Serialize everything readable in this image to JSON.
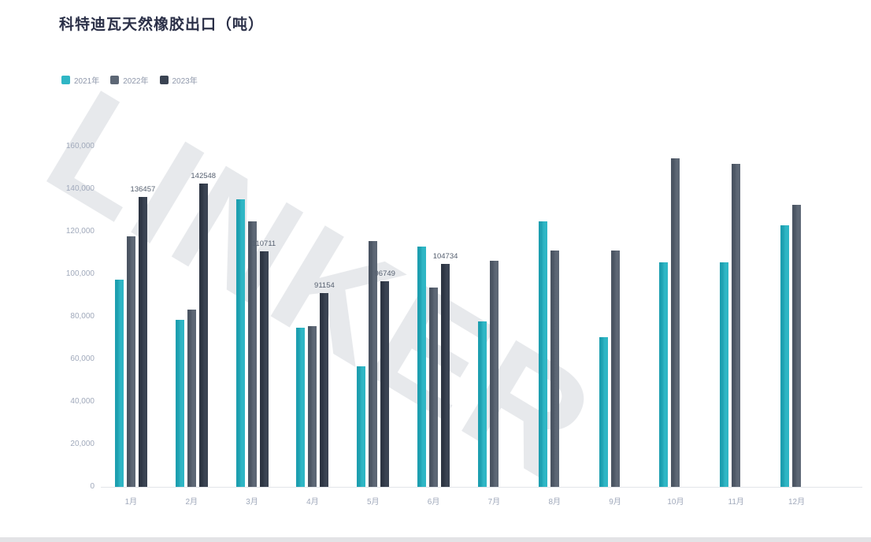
{
  "page": {
    "title": "科特迪瓦天然橡胶出口（吨）"
  },
  "watermark": "LINKER",
  "legend": {
    "items": [
      {
        "label": "2021年",
        "color": "#2fb6c5"
      },
      {
        "label": "2022年",
        "color": "#5d6775"
      },
      {
        "label": "2023年",
        "color": "#3a4352"
      }
    ]
  },
  "chart_data": {
    "type": "bar",
    "title": "科特迪瓦天然橡胶出口（吨）",
    "categories": [
      "1月",
      "2月",
      "3月",
      "4月",
      "5月",
      "6月",
      "7月",
      "8月",
      "9月",
      "10月",
      "11月",
      "12月"
    ],
    "series": [
      {
        "name": "2021年",
        "color": "#2fb6c5",
        "color_edge": "#1d9fb0",
        "values": [
          97400,
          78500,
          135200,
          74800,
          56700,
          113000,
          77800,
          124800,
          70400,
          105600,
          105600,
          123000
        ]
      },
      {
        "name": "2022年",
        "color": "#5d6775",
        "color_edge": "#4b5563",
        "values": [
          117800,
          83300,
          124800,
          75600,
          115600,
          93700,
          106300,
          111100,
          111100,
          154400,
          151900,
          132600
        ]
      },
      {
        "name": "2023年",
        "color": "#3a4352",
        "color_edge": "#2d3543",
        "values": [
          136457,
          142548,
          110711,
          91154,
          96749,
          104734,
          null,
          null,
          null,
          null,
          null,
          null
        ],
        "data_labels": [
          "136457",
          "142548",
          "110711",
          "91154",
          "96749",
          "104734"
        ]
      }
    ],
    "y_axis": {
      "min": 0,
      "max": 160000,
      "interval": 20000,
      "tick_labels": [
        "160,000",
        "140,000",
        "120,000",
        "100,000",
        "80,000",
        "60,000",
        "40,000",
        "20,000",
        "0"
      ]
    },
    "x_axis_label_color": "#a0a9bb",
    "legend_position": "top-left",
    "grid": false
  }
}
